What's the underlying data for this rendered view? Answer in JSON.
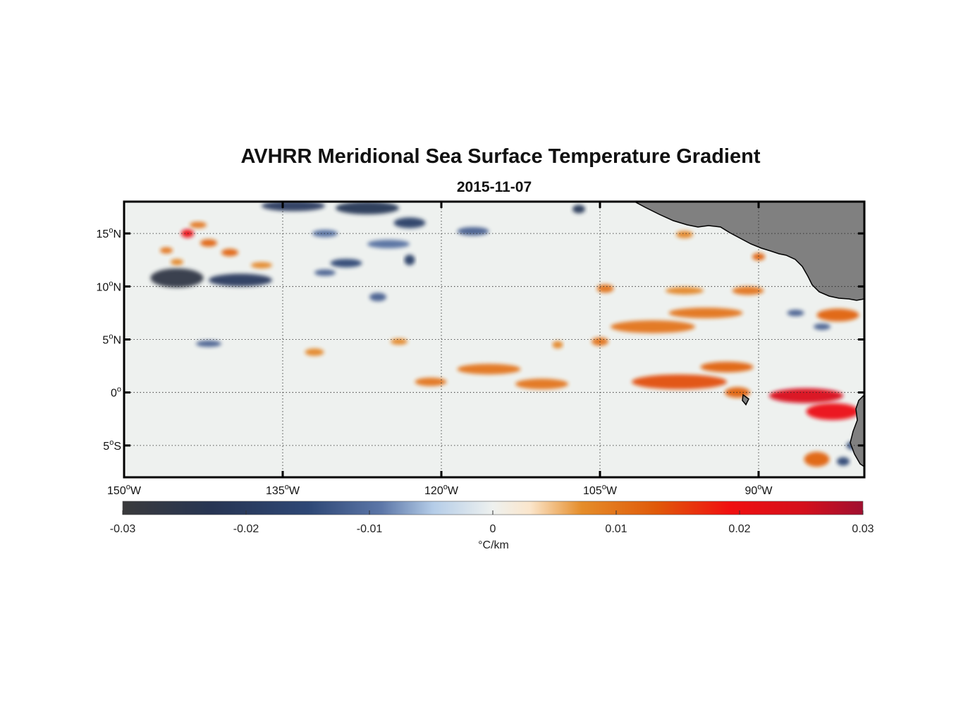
{
  "figure": {
    "title": "AVHRR Meridional Sea Surface Temperature Gradient",
    "date": "2015-11-07"
  },
  "map": {
    "lon_range_deg": [
      -150,
      -80
    ],
    "lat_range_deg": [
      -8,
      18
    ],
    "land_color": "#808080",
    "coastline_color": "#000000",
    "grid_style": "dotted",
    "lon_ticks": [
      {
        "value": -150,
        "label": "150",
        "hemi": "W"
      },
      {
        "value": -135,
        "label": "135",
        "hemi": "W"
      },
      {
        "value": -120,
        "label": "120",
        "hemi": "W"
      },
      {
        "value": -105,
        "label": "105",
        "hemi": "W"
      },
      {
        "value": -90,
        "label": "90",
        "hemi": "W"
      }
    ],
    "lat_ticks": [
      {
        "value": 15,
        "label": "15",
        "hemi": "N"
      },
      {
        "value": 10,
        "label": "10",
        "hemi": "N"
      },
      {
        "value": 5,
        "label": "5",
        "hemi": "N"
      },
      {
        "value": 0,
        "label": "0",
        "hemi": ""
      },
      {
        "value": -5,
        "label": "5",
        "hemi": "S"
      }
    ],
    "features": [
      {
        "lon": -145,
        "lat": 10.8,
        "value": -0.027,
        "rx": 2.5,
        "ry": 0.9
      },
      {
        "lon": -139,
        "lat": 10.6,
        "value": -0.02,
        "rx": 3.0,
        "ry": 0.6
      },
      {
        "lon": -144,
        "lat": 15.0,
        "value": 0.02,
        "rx": 0.6,
        "ry": 0.4
      },
      {
        "lon": -143,
        "lat": 15.8,
        "value": 0.01,
        "rx": 0.8,
        "ry": 0.3
      },
      {
        "lon": -142,
        "lat": 14.1,
        "value": 0.012,
        "rx": 0.8,
        "ry": 0.35
      },
      {
        "lon": -140,
        "lat": 13.2,
        "value": 0.012,
        "rx": 0.8,
        "ry": 0.35
      },
      {
        "lon": -146,
        "lat": 13.4,
        "value": 0.01,
        "rx": 0.6,
        "ry": 0.3
      },
      {
        "lon": -145,
        "lat": 12.3,
        "value": 0.008,
        "rx": 0.6,
        "ry": 0.3
      },
      {
        "lon": -137,
        "lat": 12.0,
        "value": 0.008,
        "rx": 1.0,
        "ry": 0.3
      },
      {
        "lon": -134,
        "lat": 17.6,
        "value": -0.02,
        "rx": 3.0,
        "ry": 0.5
      },
      {
        "lon": -127,
        "lat": 17.4,
        "value": -0.022,
        "rx": 3.0,
        "ry": 0.6
      },
      {
        "lon": -123,
        "lat": 16.0,
        "value": -0.018,
        "rx": 1.5,
        "ry": 0.5
      },
      {
        "lon": -117,
        "lat": 15.2,
        "value": -0.012,
        "rx": 1.5,
        "ry": 0.4
      },
      {
        "lon": -131,
        "lat": 15.0,
        "value": -0.01,
        "rx": 1.2,
        "ry": 0.35
      },
      {
        "lon": -125,
        "lat": 14.0,
        "value": -0.01,
        "rx": 2.0,
        "ry": 0.4
      },
      {
        "lon": -129,
        "lat": 12.2,
        "value": -0.015,
        "rx": 1.5,
        "ry": 0.4
      },
      {
        "lon": -123,
        "lat": 12.5,
        "value": -0.018,
        "rx": 0.5,
        "ry": 0.5
      },
      {
        "lon": -131,
        "lat": 11.3,
        "value": -0.012,
        "rx": 1.0,
        "ry": 0.3
      },
      {
        "lon": -126,
        "lat": 9.0,
        "value": -0.012,
        "rx": 0.8,
        "ry": 0.4
      },
      {
        "lon": -107,
        "lat": 17.3,
        "value": -0.022,
        "rx": 0.6,
        "ry": 0.4
      },
      {
        "lon": -142,
        "lat": 4.6,
        "value": -0.012,
        "rx": 1.2,
        "ry": 0.3
      },
      {
        "lon": -132,
        "lat": 3.8,
        "value": 0.008,
        "rx": 0.9,
        "ry": 0.35
      },
      {
        "lon": -124,
        "lat": 4.8,
        "value": 0.008,
        "rx": 0.8,
        "ry": 0.3
      },
      {
        "lon": -121,
        "lat": 1.0,
        "value": 0.01,
        "rx": 1.5,
        "ry": 0.4
      },
      {
        "lon": -115.5,
        "lat": 2.2,
        "value": 0.01,
        "rx": 3.0,
        "ry": 0.5
      },
      {
        "lon": -110.5,
        "lat": 0.8,
        "value": 0.01,
        "rx": 2.5,
        "ry": 0.5
      },
      {
        "lon": -109,
        "lat": 4.5,
        "value": 0.008,
        "rx": 0.5,
        "ry": 0.35
      },
      {
        "lon": -105,
        "lat": 4.8,
        "value": 0.01,
        "rx": 0.8,
        "ry": 0.4
      },
      {
        "lon": -104.5,
        "lat": 9.8,
        "value": 0.01,
        "rx": 0.8,
        "ry": 0.4
      },
      {
        "lon": -100,
        "lat": 6.2,
        "value": 0.01,
        "rx": 4.0,
        "ry": 0.6
      },
      {
        "lon": -95,
        "lat": 7.5,
        "value": 0.01,
        "rx": 3.5,
        "ry": 0.5
      },
      {
        "lon": -97,
        "lat": 9.6,
        "value": 0.008,
        "rx": 1.8,
        "ry": 0.35
      },
      {
        "lon": -91,
        "lat": 9.6,
        "value": 0.01,
        "rx": 1.5,
        "ry": 0.4
      },
      {
        "lon": -97.5,
        "lat": 1.0,
        "value": 0.014,
        "rx": 4.5,
        "ry": 0.7
      },
      {
        "lon": -93,
        "lat": 2.4,
        "value": 0.012,
        "rx": 2.5,
        "ry": 0.5
      },
      {
        "lon": -92,
        "lat": 0.0,
        "value": 0.012,
        "rx": 1.2,
        "ry": 0.5
      },
      {
        "lon": -85.5,
        "lat": -0.3,
        "value": 0.024,
        "rx": 3.5,
        "ry": 0.7
      },
      {
        "lon": -83,
        "lat": -1.8,
        "value": 0.02,
        "rx": 2.5,
        "ry": 0.8
      },
      {
        "lon": -84.5,
        "lat": -6.3,
        "value": 0.012,
        "rx": 1.2,
        "ry": 0.7
      },
      {
        "lon": -82.5,
        "lat": 7.3,
        "value": 0.012,
        "rx": 2.0,
        "ry": 0.6
      },
      {
        "lon": -84,
        "lat": 6.2,
        "value": -0.012,
        "rx": 0.8,
        "ry": 0.3
      },
      {
        "lon": -86.5,
        "lat": 7.5,
        "value": -0.012,
        "rx": 0.8,
        "ry": 0.3
      },
      {
        "lon": -81,
        "lat": -5.0,
        "value": -0.015,
        "rx": 0.7,
        "ry": 0.4
      },
      {
        "lon": -82,
        "lat": -6.5,
        "value": -0.015,
        "rx": 0.6,
        "ry": 0.4
      },
      {
        "lon": -90,
        "lat": 12.8,
        "value": 0.012,
        "rx": 0.6,
        "ry": 0.35
      },
      {
        "lon": -97,
        "lat": 14.9,
        "value": 0.008,
        "rx": 0.8,
        "ry": 0.35
      }
    ]
  },
  "colorbar": {
    "ticks": [
      "-0.03",
      "-0.02",
      "-0.01",
      "0",
      "0.01",
      "0.02",
      "0.03"
    ],
    "label": "°C/km",
    "colormap": [
      {
        "stop": 0.0,
        "color": "#3a3a3c"
      },
      {
        "stop": 0.12,
        "color": "#273553"
      },
      {
        "stop": 0.25,
        "color": "#2e4775"
      },
      {
        "stop": 0.35,
        "color": "#5d77a8"
      },
      {
        "stop": 0.42,
        "color": "#b5cde8"
      },
      {
        "stop": 0.5,
        "color": "#eef1ef"
      },
      {
        "stop": 0.55,
        "color": "#fbe6cc"
      },
      {
        "stop": 0.62,
        "color": "#e58d2a"
      },
      {
        "stop": 0.72,
        "color": "#e05a0a"
      },
      {
        "stop": 0.82,
        "color": "#f01010"
      },
      {
        "stop": 0.92,
        "color": "#d4101c"
      },
      {
        "stop": 1.0,
        "color": "#a01030"
      }
    ]
  }
}
